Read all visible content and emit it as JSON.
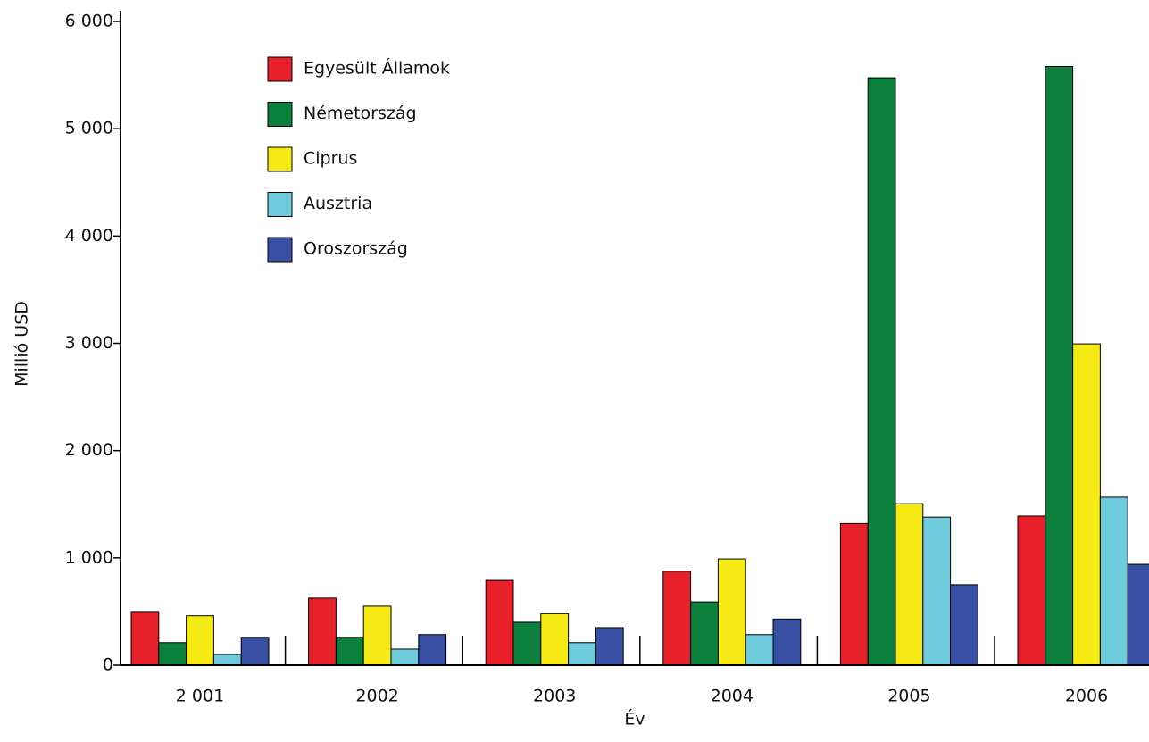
{
  "chart_data": {
    "type": "bar",
    "xlabel": "Év",
    "ylabel": "Millió USD",
    "categories": [
      "2 001",
      "2002",
      "2003",
      "2004",
      "2005",
      "2006"
    ],
    "series": [
      {
        "name": "Egyesült Államok",
        "color": "#e8202a",
        "values": [
          500,
          625,
          790,
          875,
          1320,
          1390
        ]
      },
      {
        "name": "Németország",
        "color": "#0b7f3c",
        "values": [
          210,
          260,
          400,
          590,
          5475,
          5580
        ]
      },
      {
        "name": "Ciprus",
        "color": "#f5ea14",
        "values": [
          460,
          550,
          480,
          990,
          1505,
          2995
        ]
      },
      {
        "name": "Ausztria",
        "color": "#6ecbdc",
        "values": [
          100,
          150,
          210,
          285,
          1380,
          1565
        ]
      },
      {
        "name": "Oroszország",
        "color": "#3750a3",
        "values": [
          260,
          285,
          350,
          430,
          750,
          940
        ]
      }
    ],
    "ylim": [
      0,
      6000
    ],
    "yticks": [
      0,
      {
        "value": 1000,
        "label": "1 000"
      },
      {
        "value": 2000,
        "label": "2 000"
      },
      {
        "value": 3000,
        "label": "3 000"
      },
      {
        "value": 4000,
        "label": "4 000"
      },
      {
        "value": 5000,
        "label": "5 000"
      },
      {
        "value": 6000,
        "label": "6 000"
      }
    ],
    "legend": "upper left"
  }
}
